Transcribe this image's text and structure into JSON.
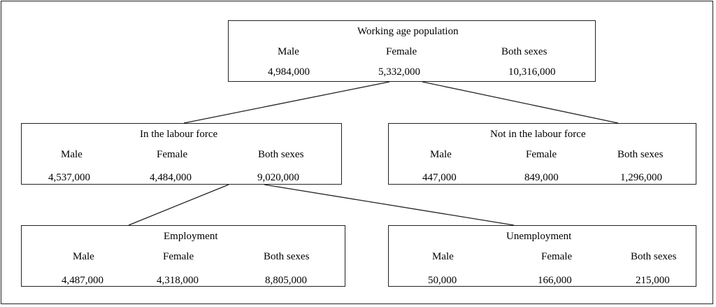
{
  "diagram": {
    "nodes": {
      "working_age": {
        "title": "Working age population",
        "male_label": "Male",
        "female_label": "Female",
        "both_label": "Both sexes",
        "male": "4,984,000",
        "female": "5,332,000",
        "both": "10,316,000"
      },
      "labour_force": {
        "title": "In the labour force",
        "male_label": "Male",
        "female_label": "Female",
        "both_label": "Both sexes",
        "male": "4,537,000",
        "female": "4,484,000",
        "both": "9,020,000"
      },
      "not_labour_force": {
        "title": "Not in the labour force",
        "male_label": "Male",
        "female_label": "Female",
        "both_label": "Both sexes",
        "male": "447,000",
        "female": "849,000",
        "both": "1,296,000"
      },
      "employment": {
        "title": "Employment",
        "male_label": "Male",
        "female_label": "Female",
        "both_label": "Both sexes",
        "male": "4,487,000",
        "female": "4,318,000",
        "both": "8,805,000"
      },
      "unemployment": {
        "title": "Unemployment",
        "male_label": "Male",
        "female_label": "Female",
        "both_label": "Both sexes",
        "male": "50,000",
        "female": "166,000",
        "both": "215,000"
      }
    },
    "edges": [
      {
        "from": "working_age",
        "to": "labour_force"
      },
      {
        "from": "working_age",
        "to": "not_labour_force"
      },
      {
        "from": "labour_force",
        "to": "employment"
      },
      {
        "from": "labour_force",
        "to": "unemployment"
      }
    ]
  }
}
